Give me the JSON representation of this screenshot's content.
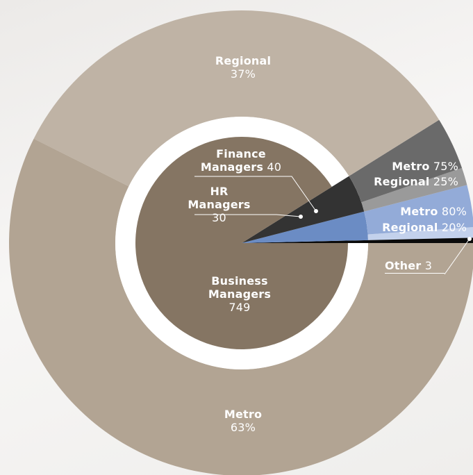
{
  "chart_data": {
    "type": "pie",
    "series": [
      {
        "name": "Other",
        "value": 3,
        "color": "#0a0a0a"
      },
      {
        "name": "HR Managers",
        "value": 30,
        "color": "#6b8cc4",
        "breakdown": {
          "categories": [
            "Regional",
            "Metro"
          ],
          "values": [
            20,
            80
          ],
          "value_labels": [
            "20%",
            "80%"
          ],
          "colors": [
            "#c3d1ec",
            "#93abd8"
          ]
        }
      },
      {
        "name": "Finance Managers",
        "value": 40,
        "color": "#333333",
        "breakdown": {
          "categories": [
            "Regional",
            "Metro"
          ],
          "values": [
            25,
            75
          ],
          "value_labels": [
            "25%",
            "75%"
          ],
          "colors": [
            "#9a9a9a",
            "#6a6a6a"
          ]
        }
      },
      {
        "name": "Business Managers",
        "value": 749,
        "color": "#857563",
        "breakdown": {
          "categories": [
            "Regional",
            "Metro"
          ],
          "values": [
            37,
            63
          ],
          "value_labels": [
            "37%",
            "63%"
          ],
          "colors": [
            "#bfb3a5",
            "#b2a493"
          ]
        }
      }
    ]
  }
}
